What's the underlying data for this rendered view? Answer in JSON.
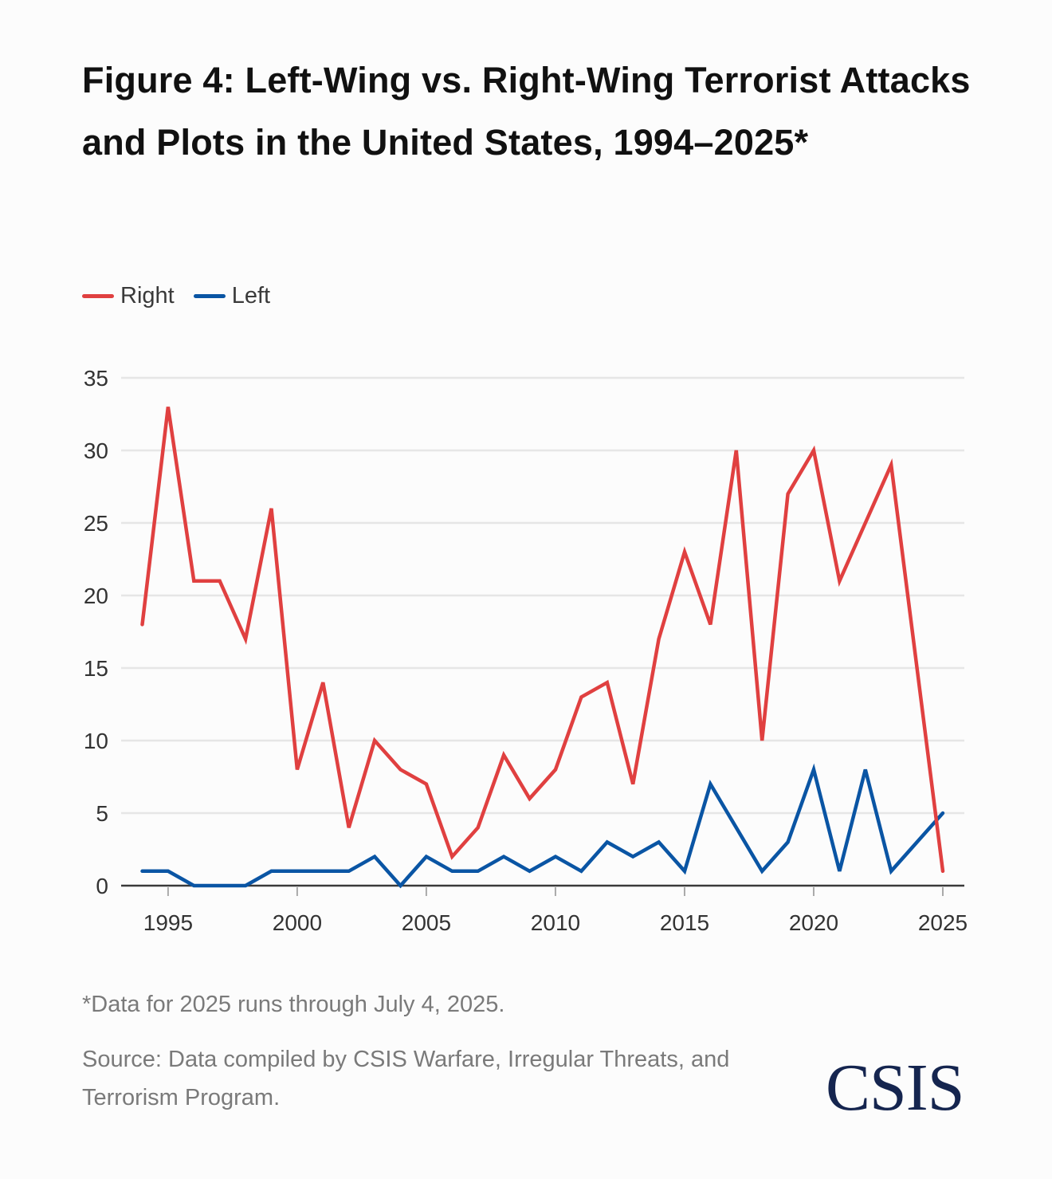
{
  "page": {
    "title": "Figure 4: Left-Wing vs. Right-Wing Terrorist Attacks and Plots in the United States, 1994–2025*",
    "footnote": "*Data for 2025 runs through July 4, 2025.",
    "source": "Source: Data compiled by CSIS Warfare, Irregular Threats, and Terrorism Program.",
    "logo": "CSIS"
  },
  "colors": {
    "right": "#e04040",
    "left": "#0a55a4",
    "grid": "#e6e6e6",
    "axis": "#3a3a3a",
    "tick_text": "#333333"
  },
  "chart_data": {
    "type": "line",
    "title": "Figure 4: Left-Wing vs. Right-Wing Terrorist Attacks and Plots in the United States, 1994–2025*",
    "xlabel": "",
    "ylabel": "",
    "x": [
      1994,
      1995,
      1996,
      1997,
      1998,
      1999,
      2000,
      2001,
      2002,
      2003,
      2004,
      2005,
      2006,
      2007,
      2008,
      2009,
      2010,
      2011,
      2012,
      2013,
      2014,
      2015,
      2016,
      2017,
      2018,
      2019,
      2020,
      2021,
      2022,
      2023,
      2024,
      2025
    ],
    "series": [
      {
        "name": "Right",
        "color": "#e04040",
        "values": [
          18,
          33,
          21,
          21,
          17,
          26,
          8,
          14,
          4,
          10,
          8,
          7,
          2,
          4,
          9,
          6,
          8,
          13,
          14,
          7,
          17,
          23,
          18,
          30,
          10,
          27,
          30,
          21,
          25,
          29,
          15,
          1
        ]
      },
      {
        "name": "Left",
        "color": "#0a55a4",
        "values": [
          1,
          1,
          0,
          0,
          0,
          1,
          1,
          1,
          1,
          2,
          0,
          2,
          1,
          1,
          2,
          1,
          2,
          1,
          3,
          2,
          3,
          1,
          7,
          4,
          1,
          3,
          8,
          1,
          8,
          1,
          3,
          5
        ]
      }
    ],
    "xlim": [
      1994,
      2025
    ],
    "ylim": [
      0,
      35
    ],
    "x_ticks": [
      1995,
      2000,
      2005,
      2010,
      2015,
      2020,
      2025
    ],
    "y_ticks": [
      0,
      5,
      10,
      15,
      20,
      25,
      30,
      35
    ],
    "grid": true,
    "legend_position": "top-left"
  }
}
